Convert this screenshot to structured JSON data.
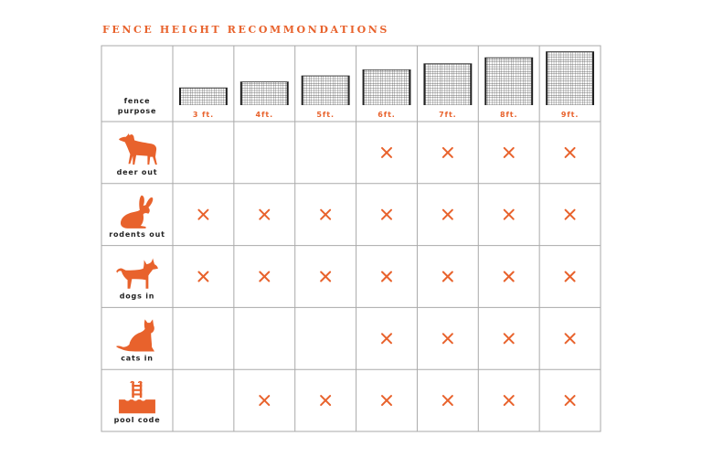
{
  "chart_data": {
    "type": "table",
    "title": "FENCE HEIGHT RECOMMONDATIONS",
    "corner_label": [
      "fence",
      "purpose"
    ],
    "columns": [
      {
        "label": "3 ft.",
        "height_ft": 3
      },
      {
        "label": "4ft.",
        "height_ft": 4
      },
      {
        "label": "5ft.",
        "height_ft": 5
      },
      {
        "label": "6ft.",
        "height_ft": 6
      },
      {
        "label": "7ft.",
        "height_ft": 7
      },
      {
        "label": "8ft.",
        "height_ft": 8
      },
      {
        "label": "9ft.",
        "height_ft": 9
      }
    ],
    "rows": [
      {
        "label": "deer out",
        "icon": "deer-icon",
        "marks": [
          false,
          false,
          false,
          true,
          true,
          true,
          true
        ]
      },
      {
        "label": "rodents out",
        "icon": "rabbit-icon",
        "marks": [
          true,
          true,
          true,
          true,
          true,
          true,
          true
        ]
      },
      {
        "label": "dogs in",
        "icon": "dog-icon",
        "marks": [
          true,
          true,
          true,
          true,
          true,
          true,
          true
        ]
      },
      {
        "label": "cats in",
        "icon": "cat-icon",
        "marks": [
          false,
          false,
          false,
          true,
          true,
          true,
          true
        ]
      },
      {
        "label": "pool code",
        "icon": "pool-ladder-icon",
        "marks": [
          false,
          true,
          true,
          true,
          true,
          true,
          true
        ]
      }
    ],
    "mark_symbol": "×",
    "colors": {
      "accent": "#e8622c",
      "grid": "#aaaaaa",
      "fence": "#222222",
      "text": "#222222"
    }
  }
}
